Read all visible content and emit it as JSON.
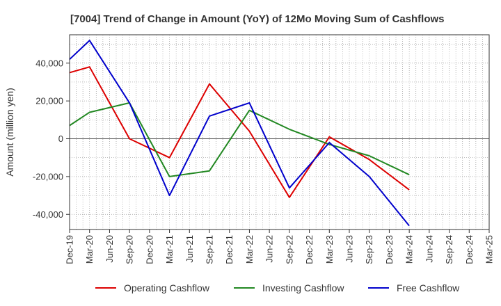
{
  "chart_data": {
    "type": "line",
    "title": "[7004]  Trend of Change in Amount (YoY) of 12Mo Moving Sum of Cashflows",
    "xlabel": "",
    "ylabel": "Amount (million yen)",
    "ylim": [
      -48000,
      55000
    ],
    "yticks": [
      -40000,
      -20000,
      0,
      20000,
      40000
    ],
    "ytick_labels": [
      "-40,000",
      "-20,000",
      "0",
      "20,000",
      "40,000"
    ],
    "categories": [
      "Dec-19",
      "Mar-20",
      "Jun-20",
      "Sep-20",
      "Dec-20",
      "Mar-21",
      "Jun-21",
      "Sep-21",
      "Dec-21",
      "Mar-22",
      "Jun-22",
      "Sep-22",
      "Dec-22",
      "Mar-23",
      "Jun-23",
      "Sep-23",
      "Dec-23",
      "Mar-24",
      "Jun-24",
      "Sep-24",
      "Dec-24",
      "Mar-25"
    ],
    "series": [
      {
        "name": "Operating Cashflow",
        "color": "#dd0000",
        "values": [
          35000,
          38000,
          null,
          0,
          null,
          -10000,
          null,
          29000,
          null,
          4000,
          null,
          -31000,
          null,
          1000,
          null,
          -11000,
          null,
          -27000,
          null,
          null,
          null,
          null
        ]
      },
      {
        "name": "Investing Cashflow",
        "color": "#228822",
        "values": [
          7000,
          14000,
          null,
          19000,
          null,
          -20000,
          null,
          -17000,
          null,
          15000,
          null,
          5000,
          null,
          -3000,
          null,
          -9000,
          null,
          -19000,
          null,
          null,
          null,
          null
        ]
      },
      {
        "name": "Free Cashflow",
        "color": "#0000cc",
        "values": [
          42000,
          52000,
          null,
          19000,
          null,
          -30000,
          null,
          12000,
          null,
          19000,
          null,
          -26000,
          null,
          -2000,
          null,
          -20000,
          null,
          -46000,
          null,
          null,
          null,
          null
        ]
      }
    ],
    "legend_position": "bottom",
    "grid": true
  }
}
